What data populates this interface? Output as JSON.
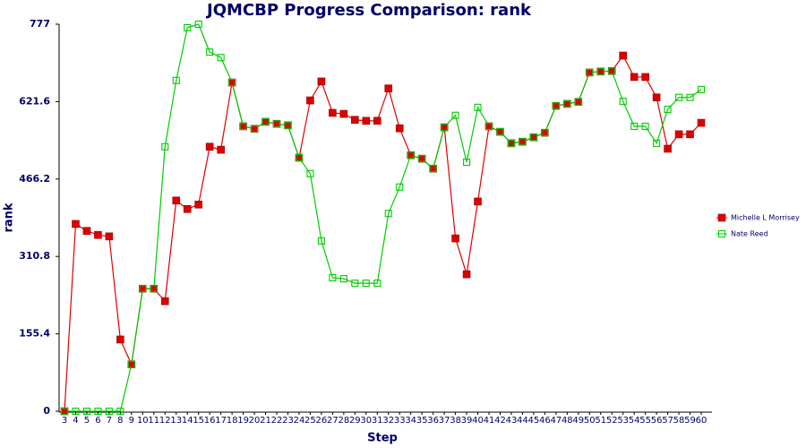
{
  "chart_data": {
    "type": "line",
    "title": "JQMCBP Progress Comparison: rank",
    "x_label": "Step",
    "y_label": "rank",
    "categories": [
      "3",
      "4",
      "5",
      "6",
      "7",
      "8",
      "9",
      "10",
      "11",
      "12",
      "13",
      "14",
      "15",
      "16",
      "17",
      "18",
      "19",
      "20",
      "21",
      "22",
      "23",
      "24",
      "25",
      "26",
      "27",
      "28",
      "29",
      "30",
      "31",
      "32",
      "33",
      "34",
      "35",
      "36",
      "37",
      "38",
      "39",
      "40",
      "41",
      "42",
      "43",
      "44",
      "45",
      "46",
      "47",
      "48",
      "49",
      "50",
      "51",
      "52",
      "53",
      "54",
      "55",
      "56",
      "57",
      "58",
      "59",
      "60"
    ],
    "series": [
      {
        "name": "Michelle L Morrisey",
        "color": "#dd0000",
        "values": [
          0,
          376,
          362,
          354,
          351,
          144,
          94,
          246,
          246,
          221,
          423,
          406,
          415,
          531,
          525,
          660,
          572,
          567,
          581,
          577,
          574,
          509,
          624,
          662,
          599,
          597,
          585,
          583,
          583,
          648,
          568,
          514,
          507,
          487,
          570,
          347,
          275,
          421,
          572,
          561,
          538,
          541,
          550,
          559,
          613,
          617,
          621,
          680,
          682,
          683,
          714,
          671,
          671,
          630,
          527,
          556,
          556,
          579
        ]
      },
      {
        "name": "Nate Reed",
        "color": "#00cc00",
        "values": [
          0,
          0,
          0,
          0,
          0,
          0,
          94,
          246,
          246,
          531,
          664,
          770,
          777,
          721,
          710,
          660,
          572,
          567,
          581,
          577,
          574,
          509,
          477,
          342,
          268,
          266,
          257,
          257,
          257,
          397,
          450,
          514,
          507,
          487,
          570,
          594,
          500,
          610,
          572,
          561,
          538,
          541,
          550,
          559,
          613,
          617,
          621,
          680,
          682,
          683,
          622,
          572,
          572,
          538,
          606,
          630,
          630,
          646
        ]
      }
    ],
    "ylim": [
      0,
      777
    ],
    "yticks": [
      0,
      155.4,
      310.8,
      466.2,
      621.6,
      777
    ]
  }
}
